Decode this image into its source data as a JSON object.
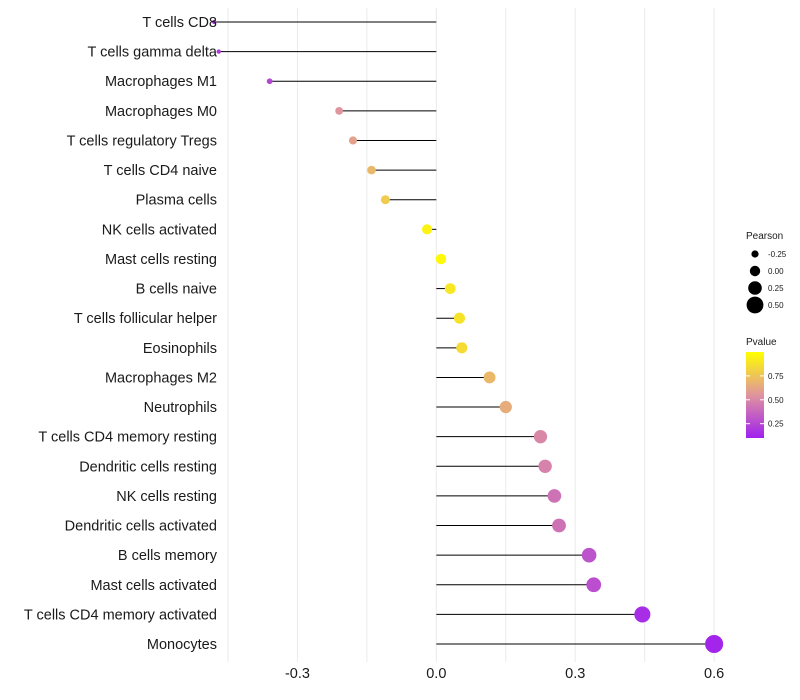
{
  "chart_data": {
    "type": "lollipop",
    "title": "",
    "xlabel": "",
    "ylabel": "",
    "xlim": [
      -0.45,
      0.63
    ],
    "x_ticks": [
      -0.3,
      0.0,
      0.3,
      0.6
    ],
    "x_tick_labels": [
      "-0.3",
      "0.0",
      "0.3",
      "0.6"
    ],
    "categories": [
      "T cells CD8",
      "T cells gamma delta",
      "Macrophages M1",
      "Macrophages M0",
      "T cells regulatory  Tregs",
      "T cells CD4 naive",
      "Plasma cells",
      "NK cells activated",
      "Mast cells resting",
      "B cells naive",
      "T cells follicular helper",
      "Eosinophils",
      "Macrophages M2",
      "Neutrophils",
      "T cells CD4 memory resting",
      "Dendritic cells resting",
      "NK cells resting",
      "Dendritic cells activated",
      "B cells memory",
      "Mast cells activated",
      "T cells CD4 memory activated",
      "Monocytes"
    ],
    "pearson": [
      -0.48,
      -0.47,
      -0.36,
      -0.21,
      -0.18,
      -0.14,
      -0.11,
      -0.02,
      0.01,
      0.03,
      0.05,
      0.055,
      0.115,
      0.15,
      0.225,
      0.235,
      0.255,
      0.265,
      0.33,
      0.34,
      0.445,
      0.6
    ],
    "pvalue": [
      0.18,
      0.2,
      0.25,
      0.55,
      0.6,
      0.7,
      0.78,
      0.95,
      0.98,
      0.9,
      0.88,
      0.85,
      0.7,
      0.65,
      0.5,
      0.48,
      0.42,
      0.42,
      0.3,
      0.28,
      0.15,
      0.12
    ],
    "size_legend": {
      "title": "Pearson",
      "values": [
        -0.25,
        0.0,
        0.25,
        0.5
      ],
      "labels": [
        "-0.25",
        "0.00",
        "0.25",
        "0.50"
      ]
    },
    "color_legend": {
      "title": "Pvalue",
      "ticks": [
        0.75,
        0.5,
        0.25
      ],
      "labels": [
        "0.75",
        "0.50",
        "0.25"
      ],
      "low_color": "#a020f0",
      "mid_color": "#e0949e",
      "high_color": "#ffff00"
    },
    "grid": true,
    "legend_position": "right"
  }
}
